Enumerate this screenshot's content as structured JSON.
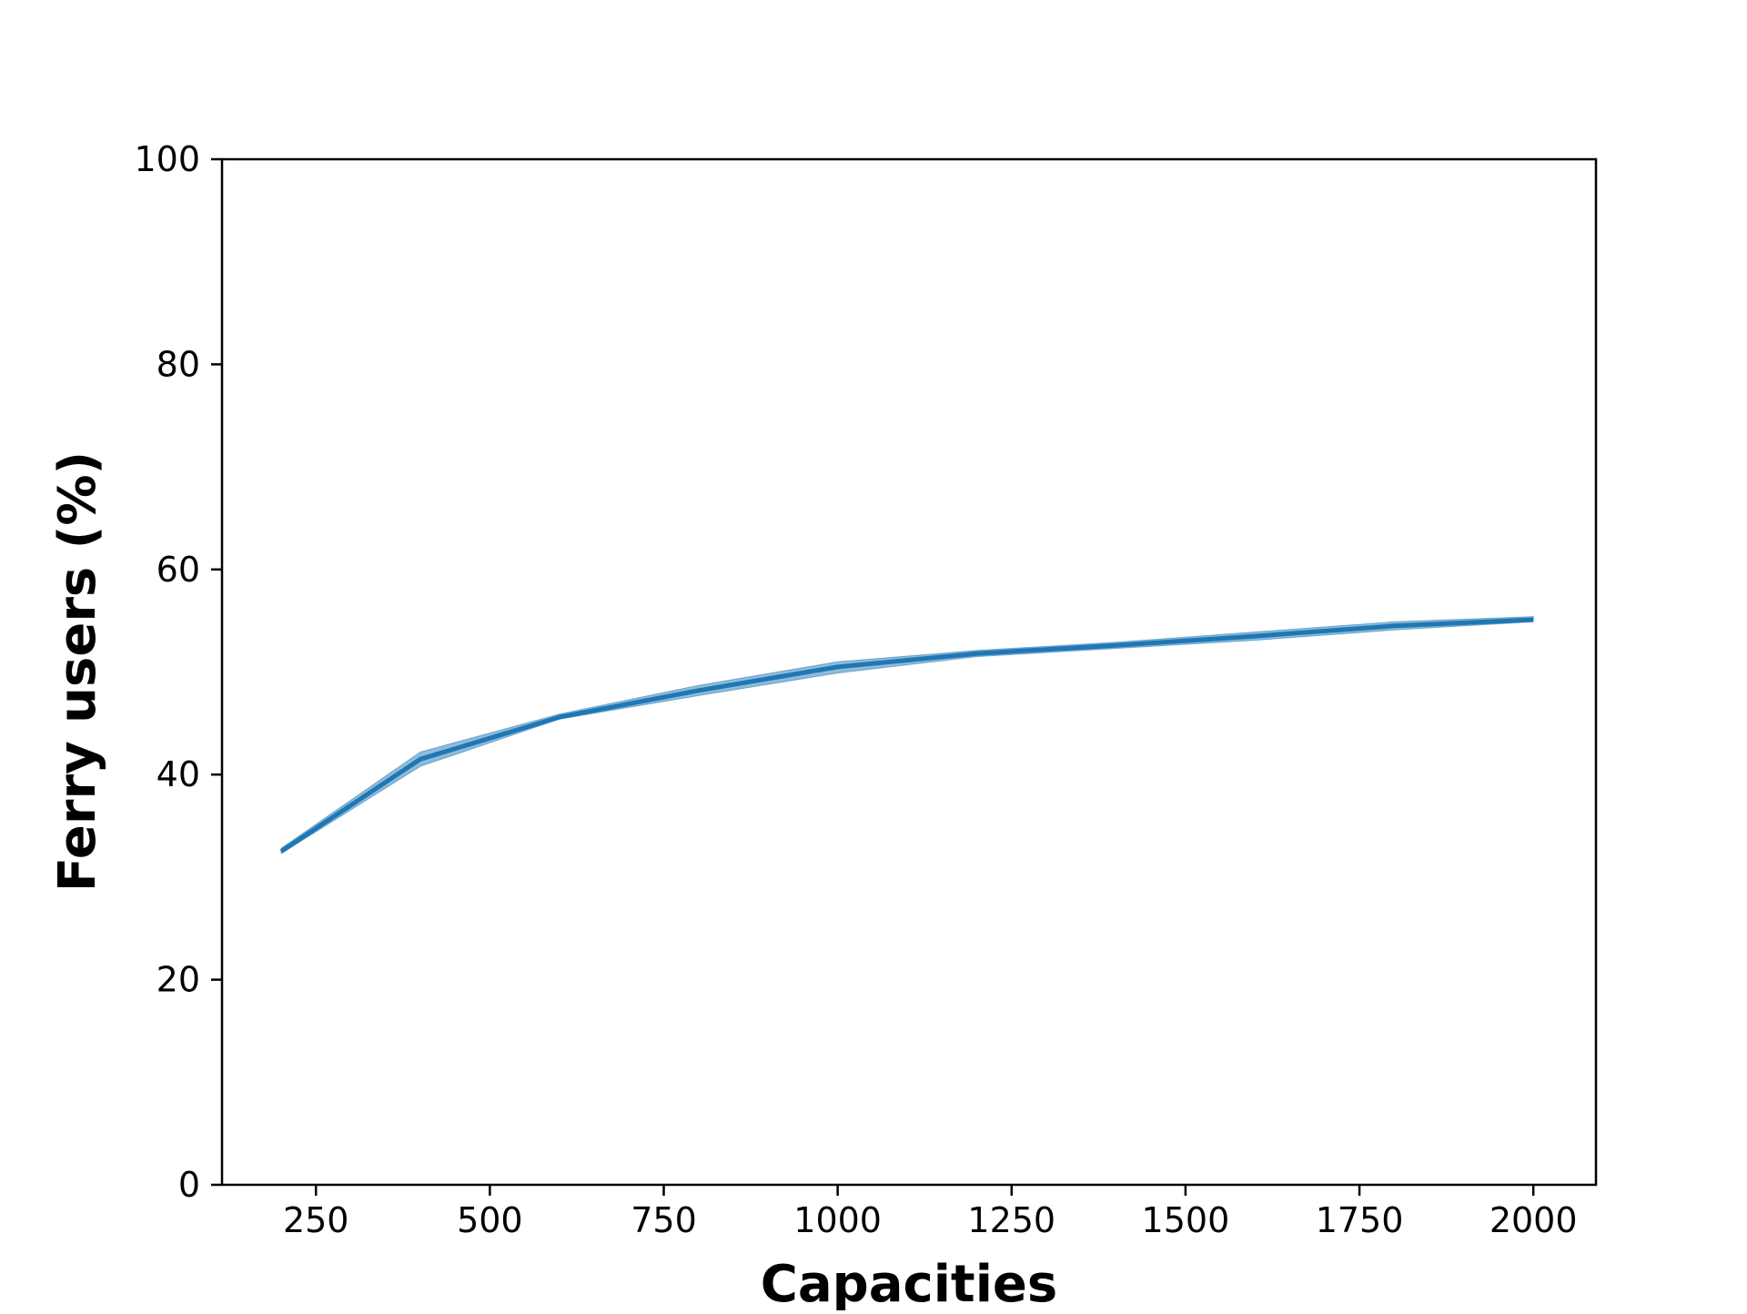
{
  "chart_data": {
    "type": "line",
    "title": "",
    "xlabel": "Capacities",
    "ylabel": "Ferry users (%)",
    "xlim": [
      115,
      2090
    ],
    "ylim": [
      0,
      100
    ],
    "xticks": [
      250,
      500,
      750,
      1000,
      1250,
      1500,
      1750,
      2000
    ],
    "yticks": [
      0,
      20,
      40,
      60,
      80,
      100
    ],
    "xtick_labels": [
      "250",
      "500",
      "750",
      "1000",
      "1250",
      "1500",
      "1750",
      "2000"
    ],
    "ytick_labels": [
      "0",
      "20",
      "40",
      "60",
      "80",
      "100"
    ],
    "grid": false,
    "legend": "none",
    "series": [
      {
        "x": [
          200,
          400,
          600,
          800,
          1000,
          1200,
          1400,
          1600,
          1800,
          2000
        ],
        "y": [
          32.5,
          41.5,
          45.6,
          48.2,
          50.5,
          51.8,
          52.6,
          53.5,
          54.5,
          55.1
        ],
        "y_lower": [
          32.3,
          40.8,
          45.4,
          47.7,
          49.9,
          51.5,
          52.3,
          53.1,
          54.1,
          54.9
        ],
        "y_upper": [
          32.8,
          42.2,
          45.9,
          48.7,
          51.0,
          52.1,
          52.9,
          53.9,
          54.9,
          55.4
        ],
        "color": "#1f77b4"
      }
    ]
  }
}
